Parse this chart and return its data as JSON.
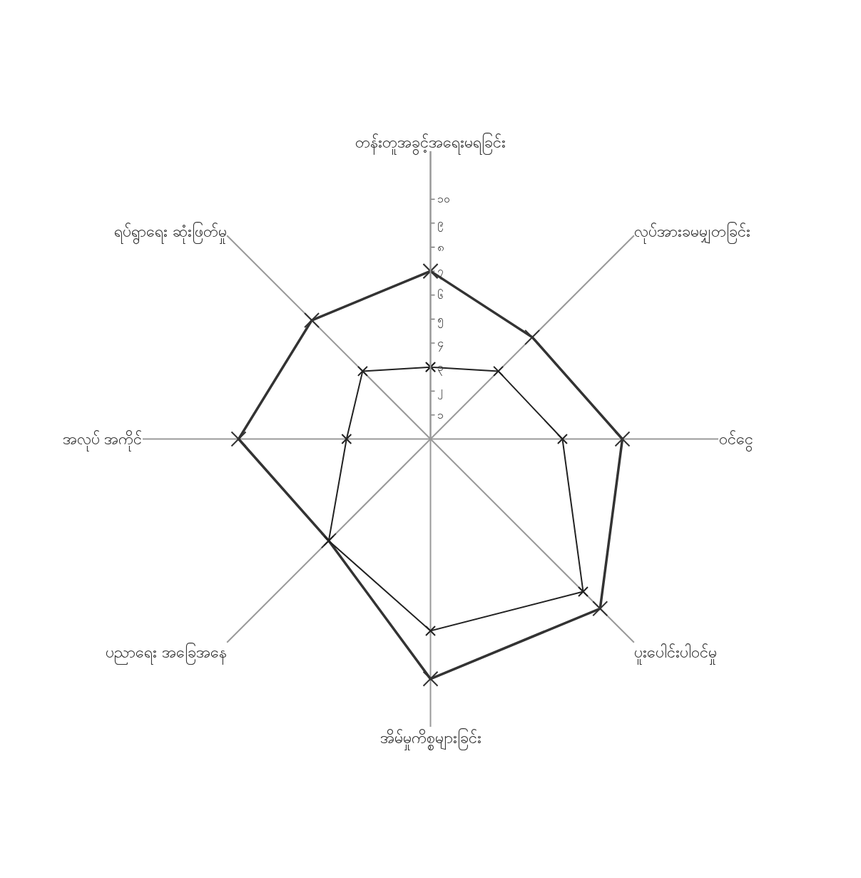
{
  "chart_data": {
    "type": "radar",
    "categories": [
      "တန်းတူအခွင့်အရေးမရခြင်း",
      "လုပ်အားခမမျှတခြင်း",
      "ဝင်ငွေ",
      "ပူးပေါင်းပါဝင်မှု",
      "အိမ်မှုကိစ္စများခြင်း",
      "ပညာရေး အခြေအနေ",
      "အလုပ် အကိုင်",
      "ရပ်ရွာရေး ဆုံးဖြတ်မှု"
    ],
    "series": [
      {
        "color": "#333333",
        "values": [
          7,
          6,
          8,
          10,
          10,
          6,
          8,
          7
        ]
      },
      {
        "color": "#222222",
        "values": [
          3,
          4,
          5.5,
          9,
          8,
          6,
          3.5,
          4
        ]
      }
    ],
    "ylim": [
      0,
      12
    ],
    "yticks": [
      {
        "value": 1,
        "label": "၁"
      },
      {
        "value": 2,
        "label": "၂"
      },
      {
        "value": 3,
        "label": "၃"
      },
      {
        "value": 4,
        "label": "၄"
      },
      {
        "value": 5,
        "label": "၅"
      },
      {
        "value": 6,
        "label": "၆"
      },
      {
        "value": 7,
        "label": "၇"
      },
      {
        "value": 8,
        "label": "၈"
      },
      {
        "value": 9,
        "label": "၉"
      },
      {
        "value": 10,
        "label": "၁၀"
      }
    ],
    "grid": "x",
    "marker": "cross",
    "line_style": "solid"
  }
}
